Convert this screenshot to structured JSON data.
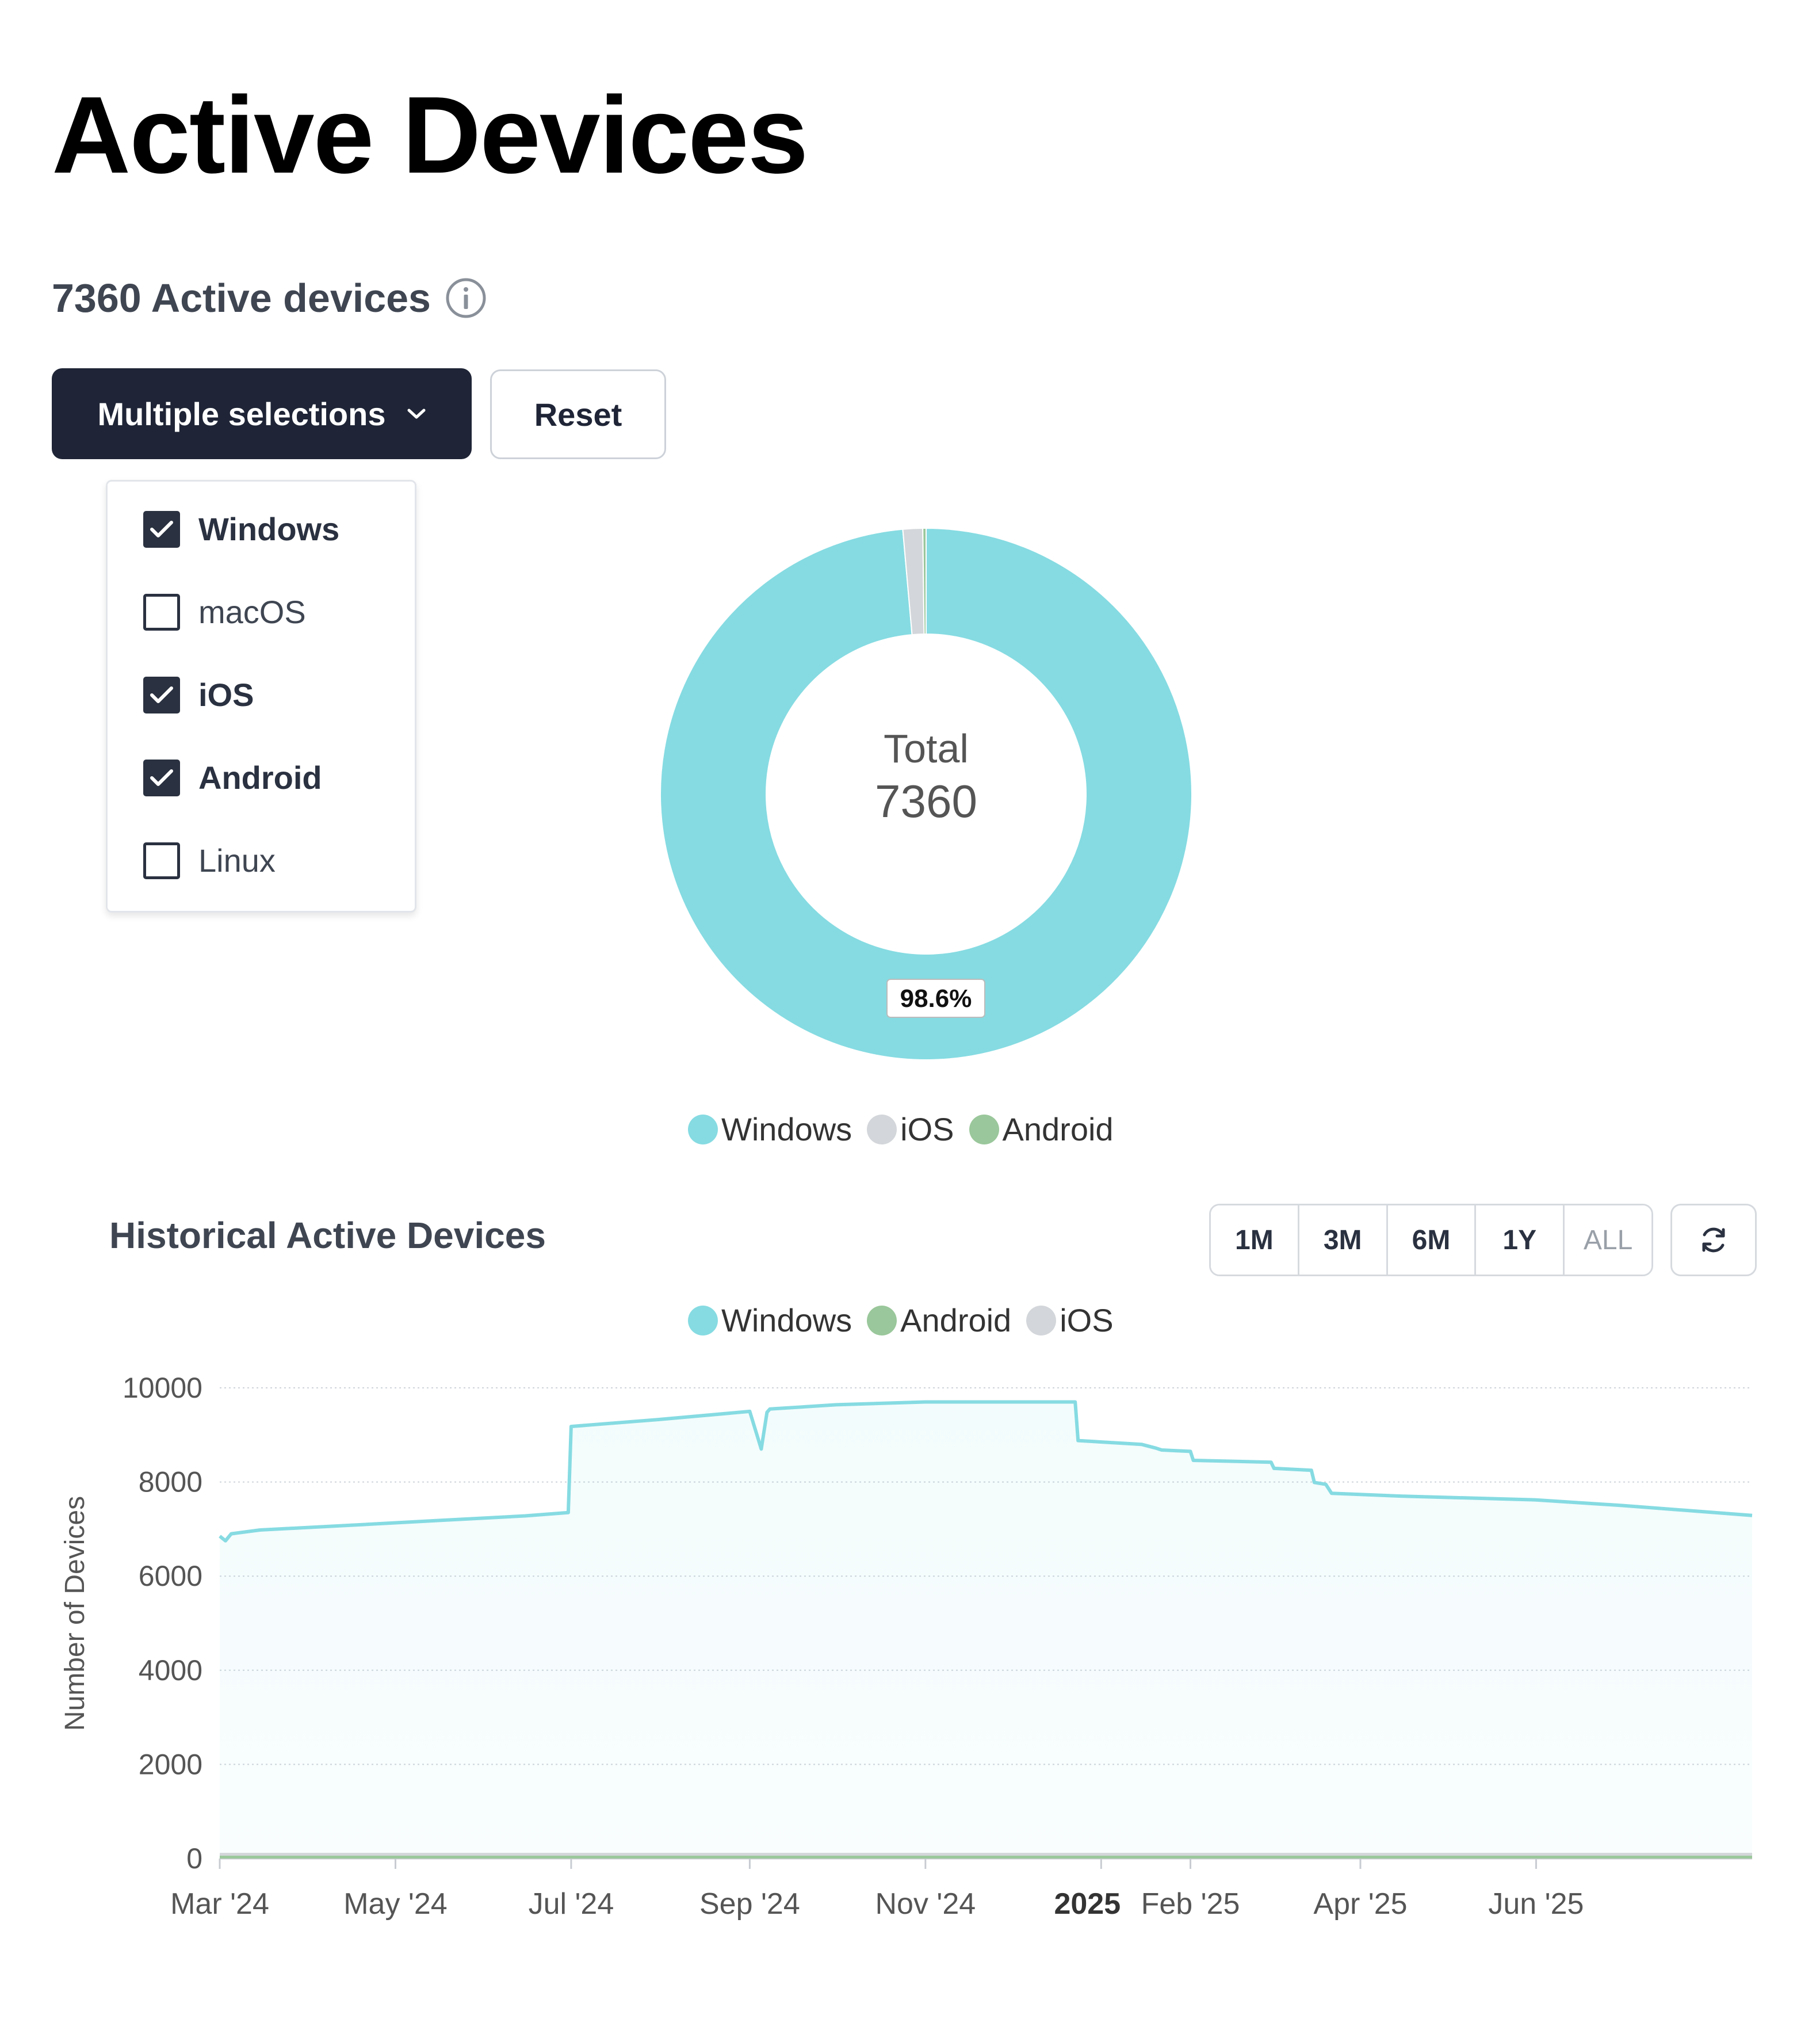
{
  "page": {
    "title": "Active Devices"
  },
  "summary": {
    "count_text": "7360 Active devices",
    "info_icon": "info-circle-icon"
  },
  "filter": {
    "dropdown_label": "Multiple selections",
    "reset_label": "Reset",
    "options": [
      {
        "label": "Windows",
        "checked": true
      },
      {
        "label": "macOS",
        "checked": false
      },
      {
        "label": "iOS",
        "checked": true
      },
      {
        "label": "Android",
        "checked": true
      },
      {
        "label": "Linux",
        "checked": false
      }
    ]
  },
  "donut": {
    "center_label": "Total",
    "center_value": "7360",
    "slice_label": "98.6%",
    "legend": [
      "Windows",
      "iOS",
      "Android"
    ]
  },
  "history": {
    "title": "Historical Active Devices",
    "ranges": [
      "1M",
      "3M",
      "6M",
      "1Y",
      "ALL"
    ],
    "refresh_icon": "refresh-icon",
    "legend": [
      "Windows",
      "Android",
      "iOS"
    ]
  },
  "colors": {
    "windows": "#86dbe2",
    "ios": "#d3d6da",
    "android": "#9ac79b",
    "dark": "#1f2536"
  },
  "chart_data": [
    {
      "type": "pie",
      "categories": [
        "Windows",
        "iOS",
        "Android"
      ],
      "values": [
        98.6,
        1.2,
        0.2
      ],
      "data_labels": [
        "98.6%"
      ],
      "center_text": [
        "Total",
        "7360"
      ]
    },
    {
      "type": "area",
      "title": "Historical Active Devices",
      "xlabel": "",
      "ylabel": "Number of Devices",
      "ylim": [
        0,
        10000
      ],
      "yticks": [
        0,
        2000,
        4000,
        6000,
        8000,
        10000
      ],
      "xtick_labels": [
        "Mar '24",
        "May '24",
        "Jul '24",
        "Sep '24",
        "Nov '24",
        "2025",
        "Feb '25",
        "Apr '25",
        "Jun '25"
      ],
      "xtick_dates": [
        "2024-03-01",
        "2024-05-01",
        "2024-07-01",
        "2024-09-01",
        "2024-11-01",
        "2025-01-01",
        "2025-02-01",
        "2025-04-01",
        "2025-06-01"
      ],
      "xlim": [
        "2024-03-01",
        "2025-08-15"
      ],
      "grid": true,
      "legend": "top-center",
      "series": [
        {
          "name": "Windows",
          "x": [
            "2024-03-01",
            "2024-03-03",
            "2024-03-05",
            "2024-03-15",
            "2024-04-15",
            "2024-05-15",
            "2024-06-15",
            "2024-06-30",
            "2024-07-01",
            "2024-08-01",
            "2024-09-01",
            "2024-09-05",
            "2024-09-07",
            "2024-09-08",
            "2024-10-01",
            "2024-11-01",
            "2024-12-01",
            "2024-12-23",
            "2024-12-24",
            "2025-01-15",
            "2025-01-20",
            "2025-01-22",
            "2025-02-01",
            "2025-02-02",
            "2025-03-01",
            "2025-03-02",
            "2025-03-15",
            "2025-03-16",
            "2025-03-20",
            "2025-03-22",
            "2025-04-15",
            "2025-06-01",
            "2025-07-01",
            "2025-08-15"
          ],
          "values": [
            6850,
            6750,
            6900,
            6980,
            7080,
            7180,
            7280,
            7350,
            9180,
            9330,
            9500,
            8700,
            9480,
            9550,
            9640,
            9700,
            9700,
            9700,
            8880,
            8800,
            8720,
            8680,
            8650,
            8460,
            8420,
            8290,
            8250,
            7990,
            7950,
            7760,
            7700,
            7620,
            7500,
            7290
          ]
        },
        {
          "name": "Android",
          "x": [
            "2024-03-01",
            "2025-08-15"
          ],
          "values": [
            30,
            30
          ]
        },
        {
          "name": "iOS",
          "x": [
            "2024-03-01",
            "2025-08-15"
          ],
          "values": [
            90,
            90
          ]
        }
      ]
    }
  ]
}
